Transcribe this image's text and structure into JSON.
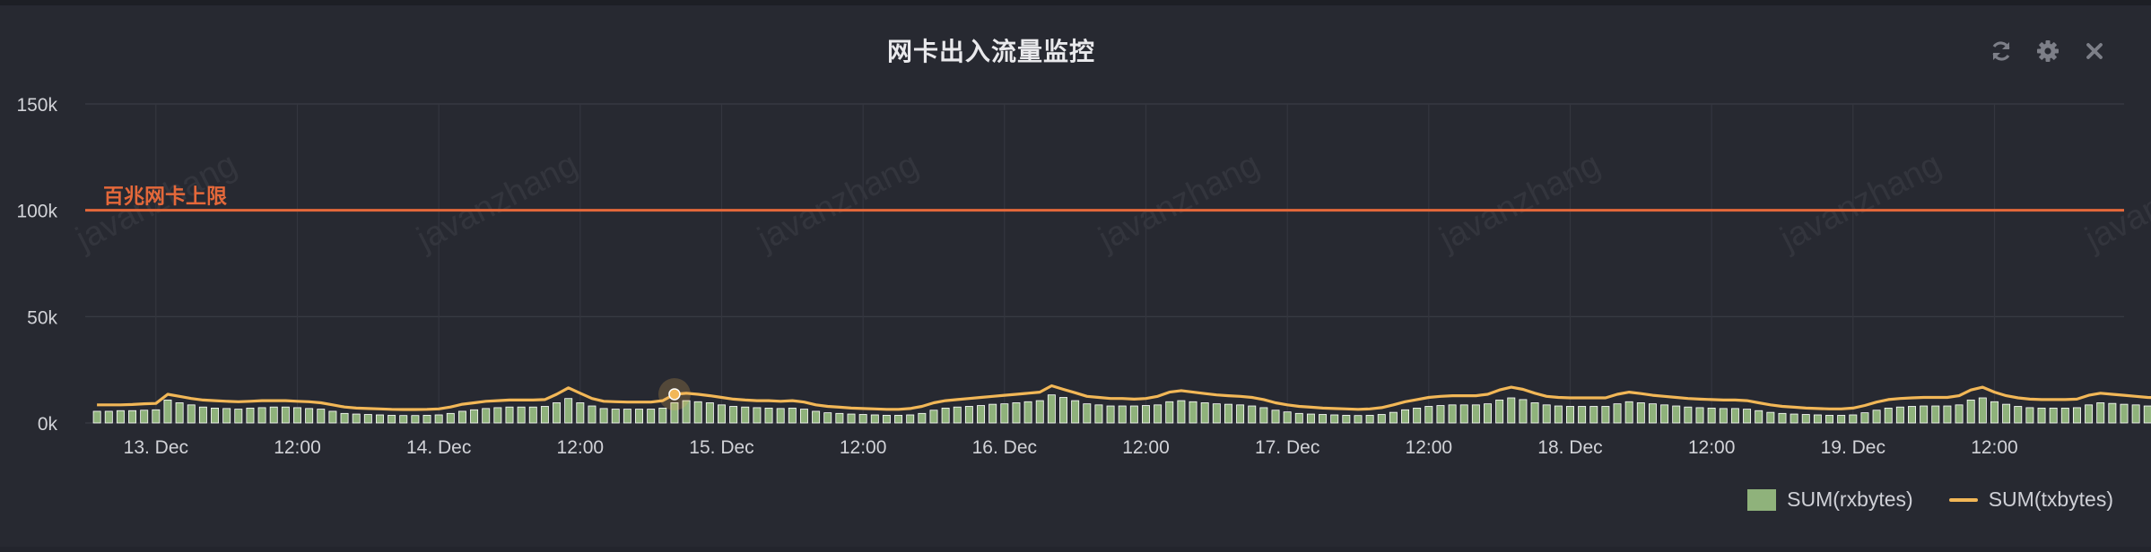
{
  "panel": {
    "title": "网卡出入流量监控",
    "tools": [
      {
        "icon": "refresh-icon"
      },
      {
        "icon": "gear-icon"
      },
      {
        "icon": "close-icon"
      }
    ]
  },
  "watermark": "javanzhang",
  "legend": [
    {
      "name": "SUM(rxbytes)",
      "color": "#8fb27b",
      "type": "bar"
    },
    {
      "name": "SUM(txbytes)",
      "color": "#f2b757",
      "type": "line"
    }
  ],
  "chart_data": {
    "type": "bar",
    "title": "网卡出入流量监控",
    "xlabel": "",
    "ylabel": "",
    "ylim": [
      0,
      150000
    ],
    "xlim": [
      "2019-12-12 18:00",
      "2019-12-19 23:00"
    ],
    "y_ticks": [
      {
        "value": 0,
        "label": "0k"
      },
      {
        "value": 50000,
        "label": "50k"
      },
      {
        "value": 100000,
        "label": "100k"
      },
      {
        "value": 150000,
        "label": "150k"
      }
    ],
    "x_ticks": [
      {
        "t": "2019-12-13 00:00",
        "label": "13. Dec"
      },
      {
        "t": "2019-12-13 12:00",
        "label": "12:00"
      },
      {
        "t": "2019-12-14 00:00",
        "label": "14. Dec"
      },
      {
        "t": "2019-12-14 12:00",
        "label": "12:00"
      },
      {
        "t": "2019-12-15 00:00",
        "label": "15. Dec"
      },
      {
        "t": "2019-12-15 12:00",
        "label": "12:00"
      },
      {
        "t": "2019-12-16 00:00",
        "label": "16. Dec"
      },
      {
        "t": "2019-12-16 12:00",
        "label": "12:00"
      },
      {
        "t": "2019-12-17 00:00",
        "label": "17. Dec"
      },
      {
        "t": "2019-12-17 12:00",
        "label": "12:00"
      },
      {
        "t": "2019-12-18 00:00",
        "label": "18. Dec"
      },
      {
        "t": "2019-12-18 12:00",
        "label": "12:00"
      },
      {
        "t": "2019-12-19 00:00",
        "label": "19. Dec"
      },
      {
        "t": "2019-12-19 12:00",
        "label": "12:00"
      }
    ],
    "grid": true,
    "legend_position": "bottom-right",
    "plot_lines": [
      {
        "value": 100000,
        "label": "百兆网卡上限",
        "color": "#e4683a"
      }
    ],
    "hover_point": {
      "t": "2019-12-14 20:00",
      "series": "SUM(txbytes)"
    },
    "series": [
      {
        "name": "SUM(rxbytes)",
        "type": "bar",
        "color": "#8fb27b",
        "start": "2019-12-12 19:00",
        "step_hours": 1,
        "values": [
          5500,
          5500,
          5800,
          5800,
          6000,
          6200,
          10800,
          9500,
          8500,
          7500,
          7000,
          6800,
          6500,
          7000,
          7200,
          7500,
          7500,
          7200,
          6800,
          6500,
          5500,
          4500,
          4200,
          4000,
          3800,
          3600,
          3500,
          3500,
          3600,
          3800,
          4500,
          5500,
          6200,
          6800,
          7200,
          7500,
          7500,
          7500,
          7800,
          9500,
          11500,
          9500,
          8000,
          6800,
          6500,
          6500,
          6500,
          6500,
          7000,
          9500,
          10500,
          10000,
          9500,
          8500,
          7800,
          7500,
          7200,
          7000,
          6800,
          7000,
          6500,
          5500,
          4800,
          4500,
          4200,
          4000,
          3800,
          3600,
          3600,
          3800,
          4500,
          6000,
          7000,
          7500,
          7800,
          8200,
          8800,
          9000,
          9500,
          10000,
          10500,
          13200,
          12000,
          10500,
          9000,
          8500,
          8000,
          8000,
          8000,
          8200,
          8500,
          10000,
          10500,
          10000,
          9500,
          9000,
          8800,
          8500,
          8000,
          7200,
          6000,
          5200,
          4500,
          4200,
          4000,
          3800,
          3600,
          3500,
          3600,
          4000,
          5000,
          6200,
          7000,
          7800,
          8200,
          8500,
          8500,
          8500,
          9000,
          10800,
          11800,
          11000,
          9500,
          8500,
          8000,
          7800,
          7800,
          7800,
          7800,
          9000,
          10000,
          9500,
          9000,
          8500,
          8000,
          7500,
          7200,
          7000,
          6800,
          6800,
          6500,
          5800,
          5000,
          4500,
          4200,
          4000,
          3800,
          3600,
          3600,
          3800,
          4800,
          6000,
          7000,
          7500,
          7800,
          8000,
          8000,
          8000,
          8500,
          10800,
          11800,
          10000,
          8800,
          7800,
          7200,
          7000,
          7000,
          7000,
          7200,
          8500,
          9500,
          9200,
          8800,
          8500,
          8000,
          7800,
          7500,
          7200,
          7000,
          6800,
          6500,
          5500,
          4800,
          4500,
          4200,
          4000,
          3800,
          3600,
          3600,
          4000,
          5200,
          6200,
          6800,
          7200,
          7500,
          7800,
          7800,
          7800,
          8000,
          10500,
          11500,
          10000,
          8500,
          7800,
          7200,
          7000,
          7000,
          7000,
          7200,
          8800,
          9800,
          9500,
          9000,
          8500,
          8200,
          7800,
          7500,
          7200,
          7000,
          6800,
          6200,
          5200,
          4600,
          4300,
          4000,
          3800,
          3600,
          3500,
          3600,
          4200,
          5500,
          6500,
          7000,
          7500,
          7800,
          7800,
          7800,
          7800,
          8000,
          10200,
          11000,
          9800,
          8500,
          7800,
          7200,
          7000,
          7000,
          7000,
          7200,
          8500,
          9500,
          9200,
          8800,
          8500,
          8000,
          7500,
          7200,
          7000,
          6800,
          6500,
          5500,
          4800,
          4500,
          4200,
          4000,
          3800,
          3600,
          3600,
          4000,
          5200,
          6200,
          6800,
          7200,
          7500,
          7500,
          7500,
          7800,
          10000,
          11500,
          10000,
          8800,
          7500
        ]
      },
      {
        "name": "SUM(txbytes)",
        "type": "line",
        "color": "#f2b757",
        "start": "2019-12-12 19:00",
        "step_hours": 1,
        "values": [
          8500,
          8500,
          8500,
          8700,
          9000,
          9200,
          13500,
          12500,
          11500,
          10800,
          10500,
          10200,
          10000,
          10200,
          10500,
          10500,
          10500,
          10200,
          10000,
          9500,
          8500,
          7500,
          7000,
          6800,
          6600,
          6400,
          6300,
          6300,
          6400,
          6600,
          7500,
          8800,
          9500,
          10200,
          10500,
          10800,
          10800,
          10800,
          11000,
          13500,
          16500,
          14000,
          11500,
          10200,
          10000,
          9800,
          9800,
          9800,
          10500,
          13500,
          14000,
          13500,
          12800,
          12000,
          11200,
          10800,
          10500,
          10500,
          10200,
          10500,
          9800,
          8500,
          7800,
          7400,
          7000,
          6800,
          6600,
          6400,
          6400,
          6800,
          7800,
          9500,
          10500,
          11000,
          11500,
          12000,
          12500,
          13000,
          13500,
          14000,
          14500,
          17500,
          15800,
          14200,
          12500,
          12000,
          11500,
          11500,
          11200,
          11500,
          12500,
          14500,
          15200,
          14500,
          13800,
          13200,
          12800,
          12500,
          12000,
          11000,
          9500,
          8500,
          7800,
          7400,
          7000,
          6800,
          6600,
          6400,
          6600,
          7200,
          8500,
          10000,
          11000,
          12000,
          12500,
          12800,
          12800,
          12800,
          13500,
          15500,
          16800,
          15800,
          14000,
          12500,
          12000,
          11800,
          11800,
          11800,
          11800,
          13500,
          14500,
          13800,
          13000,
          12500,
          12000,
          11500,
          11200,
          11000,
          10800,
          10800,
          10500,
          9500,
          8500,
          7800,
          7400,
          7000,
          6800,
          6600,
          6600,
          7000,
          8200,
          9800,
          11000,
          11500,
          11800,
          12000,
          12000,
          12000,
          12800,
          15500,
          16800,
          14500,
          12800,
          11800,
          11200,
          11000,
          11000,
          11000,
          11200,
          13000,
          14000,
          13500,
          13000,
          12500,
          12000,
          11800,
          11500,
          11200,
          11000,
          10800,
          10500,
          9500,
          8500,
          7800,
          7400,
          7000,
          6800,
          6600,
          6600,
          7200,
          8800,
          10000,
          10800,
          11200,
          11500,
          11800,
          11800,
          11800,
          12000,
          15500,
          16500,
          14800,
          13000,
          11800,
          11200,
          11000,
          11000,
          11000,
          11200,
          13200,
          14200,
          13800,
          13200,
          12800,
          12200,
          11800,
          11500,
          11200,
          11000,
          10800,
          10200,
          8800,
          8000,
          7600,
          7200,
          6900,
          6700,
          6500,
          6700,
          7600,
          9200,
          10500,
          11000,
          11500,
          11800,
          11800,
          11800,
          11800,
          12000,
          15000,
          16000,
          14500,
          12800,
          11800,
          11200,
          11000,
          11000,
          11000,
          11200,
          13000,
          14000,
          13500,
          13000,
          12500,
          12000,
          11500,
          11200,
          11000,
          10800,
          10500,
          9500,
          8500,
          7800,
          7400,
          7000,
          6800,
          6600,
          6600,
          7000,
          8500,
          10000,
          10800,
          11200,
          11500,
          11500,
          11500,
          11800,
          14800,
          16800,
          14500,
          12500,
          9500
        ]
      }
    ]
  }
}
